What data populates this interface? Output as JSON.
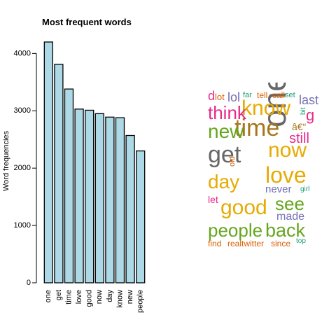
{
  "chart_data": [
    {
      "type": "bar",
      "title": "Most frequent words",
      "xlabel": "",
      "ylabel": "Word frequencies",
      "ylim": [
        0,
        4200
      ],
      "yticks": [
        0,
        1000,
        2000,
        3000,
        4000
      ],
      "grid": false,
      "categories": [
        "one",
        "get",
        "time",
        "love",
        "good",
        "now",
        "day",
        "know",
        "new",
        "people"
      ],
      "values": [
        4200,
        3810,
        3380,
        3030,
        3010,
        2950,
        2890,
        2880,
        2570,
        2300
      ],
      "bar_color": "#add8e6"
    },
    {
      "type": "wordcloud",
      "words": [
        {
          "text": "one",
          "color": "#666666"
        },
        {
          "text": "time",
          "color": "#a6761d"
        },
        {
          "text": "know",
          "color": "#e6ab02"
        },
        {
          "text": "now",
          "color": "#e6ab02"
        },
        {
          "text": "love",
          "color": "#e6ab02"
        },
        {
          "text": "get",
          "color": "#666666"
        },
        {
          "text": "good",
          "color": "#e6ab02"
        },
        {
          "text": "new",
          "color": "#66a61e"
        },
        {
          "text": "people",
          "color": "#66a61e"
        },
        {
          "text": "back",
          "color": "#66a61e"
        },
        {
          "text": "day",
          "color": "#e6ab02"
        },
        {
          "text": "see",
          "color": "#66a61e"
        },
        {
          "text": "think",
          "color": "#e7298a"
        },
        {
          "text": "still",
          "color": "#e7298a"
        },
        {
          "text": "made",
          "color": "#7570b3"
        },
        {
          "text": "never",
          "color": "#7570b3"
        },
        {
          "text": "last",
          "color": "#7570b3"
        },
        {
          "text": "lol",
          "color": "#7570b3"
        },
        {
          "text": "let",
          "color": "#e7298a"
        },
        {
          "text": "lot",
          "color": "#d95f02"
        },
        {
          "text": "tell",
          "color": "#d95f02"
        },
        {
          "text": "call",
          "color": "#d95f02"
        },
        {
          "text": "set",
          "color": "#1b9e77"
        },
        {
          "text": "far",
          "color": "#1b9e77"
        },
        {
          "text": "old",
          "color": "#d95f02"
        },
        {
          "text": "girl",
          "color": "#1b9e77"
        },
        {
          "text": "realtwitter",
          "color": "#d95f02"
        },
        {
          "text": "since",
          "color": "#d95f02"
        },
        {
          "text": "top",
          "color": "#1b9e77"
        },
        {
          "text": "find",
          "color": "#d95f02"
        },
        {
          "text": "bit",
          "color": "#1b9e77"
        },
        {
          "text": "g",
          "color": "#e7298a"
        },
        {
          "text": "d",
          "color": "#e7298a"
        },
        {
          "text": "â€“",
          "color": "#a6761d"
        }
      ]
    }
  ]
}
